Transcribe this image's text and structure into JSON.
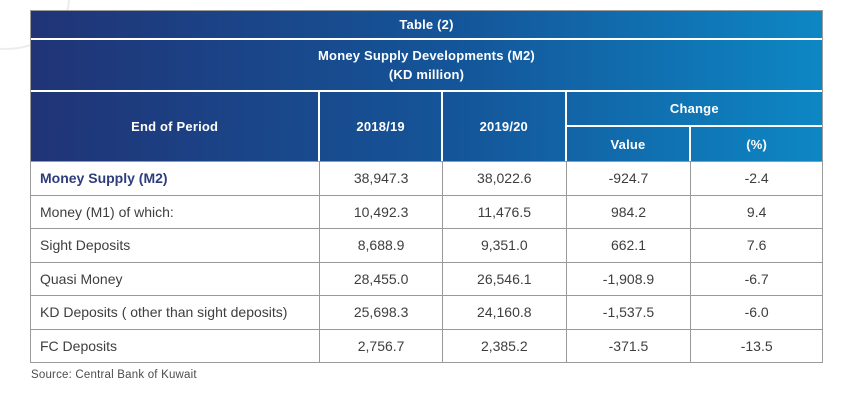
{
  "header": {
    "table_label": "Table (2)",
    "title": "Money Supply Developments (M2)",
    "unit": "(KD million)"
  },
  "columns": {
    "end_of_period": "End of Period",
    "year1": "2018/19",
    "year2": "2019/20",
    "change": "Change",
    "change_value": "Value",
    "change_percent": "(%)"
  },
  "rows": [
    {
      "label": "Money Supply (M2)",
      "y1": "38,947.3",
      "y2": "38,022.6",
      "change_value": "-924.7",
      "change_pct": "-2.4"
    },
    {
      "label": "Money (M1) of which:",
      "y1": "10,492.3",
      "y2": "11,476.5",
      "change_value": "984.2",
      "change_pct": "9.4"
    },
    {
      "label": "Sight Deposits",
      "y1": "8,688.9",
      "y2": "9,351.0",
      "change_value": "662.1",
      "change_pct": "7.6"
    },
    {
      "label": "Quasi Money",
      "y1": "28,455.0",
      "y2": "26,546.1",
      "change_value": "-1,908.9",
      "change_pct": "-6.7"
    },
    {
      "label": "KD Deposits ( other than sight deposits)",
      "y1": "25,698.3",
      "y2": "24,160.8",
      "change_value": "-1,537.5",
      "change_pct": "-6.0"
    },
    {
      "label": "FC Deposits",
      "y1": "2,756.7",
      "y2": "2,385.2",
      "change_value": "-371.5",
      "change_pct": "-13.5"
    }
  ],
  "footer": {
    "source": "Source: Central Bank of Kuwait"
  },
  "colors": {
    "gradient_left": "#203476",
    "gradient_right": "#0d87c4",
    "emphasis_text": "#2e3d7c",
    "body_text": "#3e3e3e",
    "grid_line": "#999999",
    "header_text": "#ffffff"
  },
  "chart_data": {
    "type": "table",
    "title": "Money Supply Developments (M2)",
    "subtitle": "Table (2)",
    "unit": "KD million",
    "columns": [
      "End of Period",
      "2018/19",
      "2019/20",
      "Change Value",
      "Change (%)"
    ],
    "rows": [
      [
        "Money Supply (M2)",
        38947.3,
        38022.6,
        -924.7,
        -2.4
      ],
      [
        "Money (M1) of which:",
        10492.3,
        11476.5,
        984.2,
        9.4
      ],
      [
        "Sight Deposits",
        8688.9,
        9351.0,
        662.1,
        7.6
      ],
      [
        "Quasi Money",
        28455.0,
        26546.1,
        -1908.9,
        -6.7
      ],
      [
        "KD Deposits ( other than sight deposits)",
        25698.3,
        24160.8,
        -1537.5,
        -6.0
      ],
      [
        "FC Deposits",
        2756.7,
        2385.2,
        -371.5,
        -13.5
      ]
    ],
    "source": "Source: Central Bank of Kuwait"
  }
}
